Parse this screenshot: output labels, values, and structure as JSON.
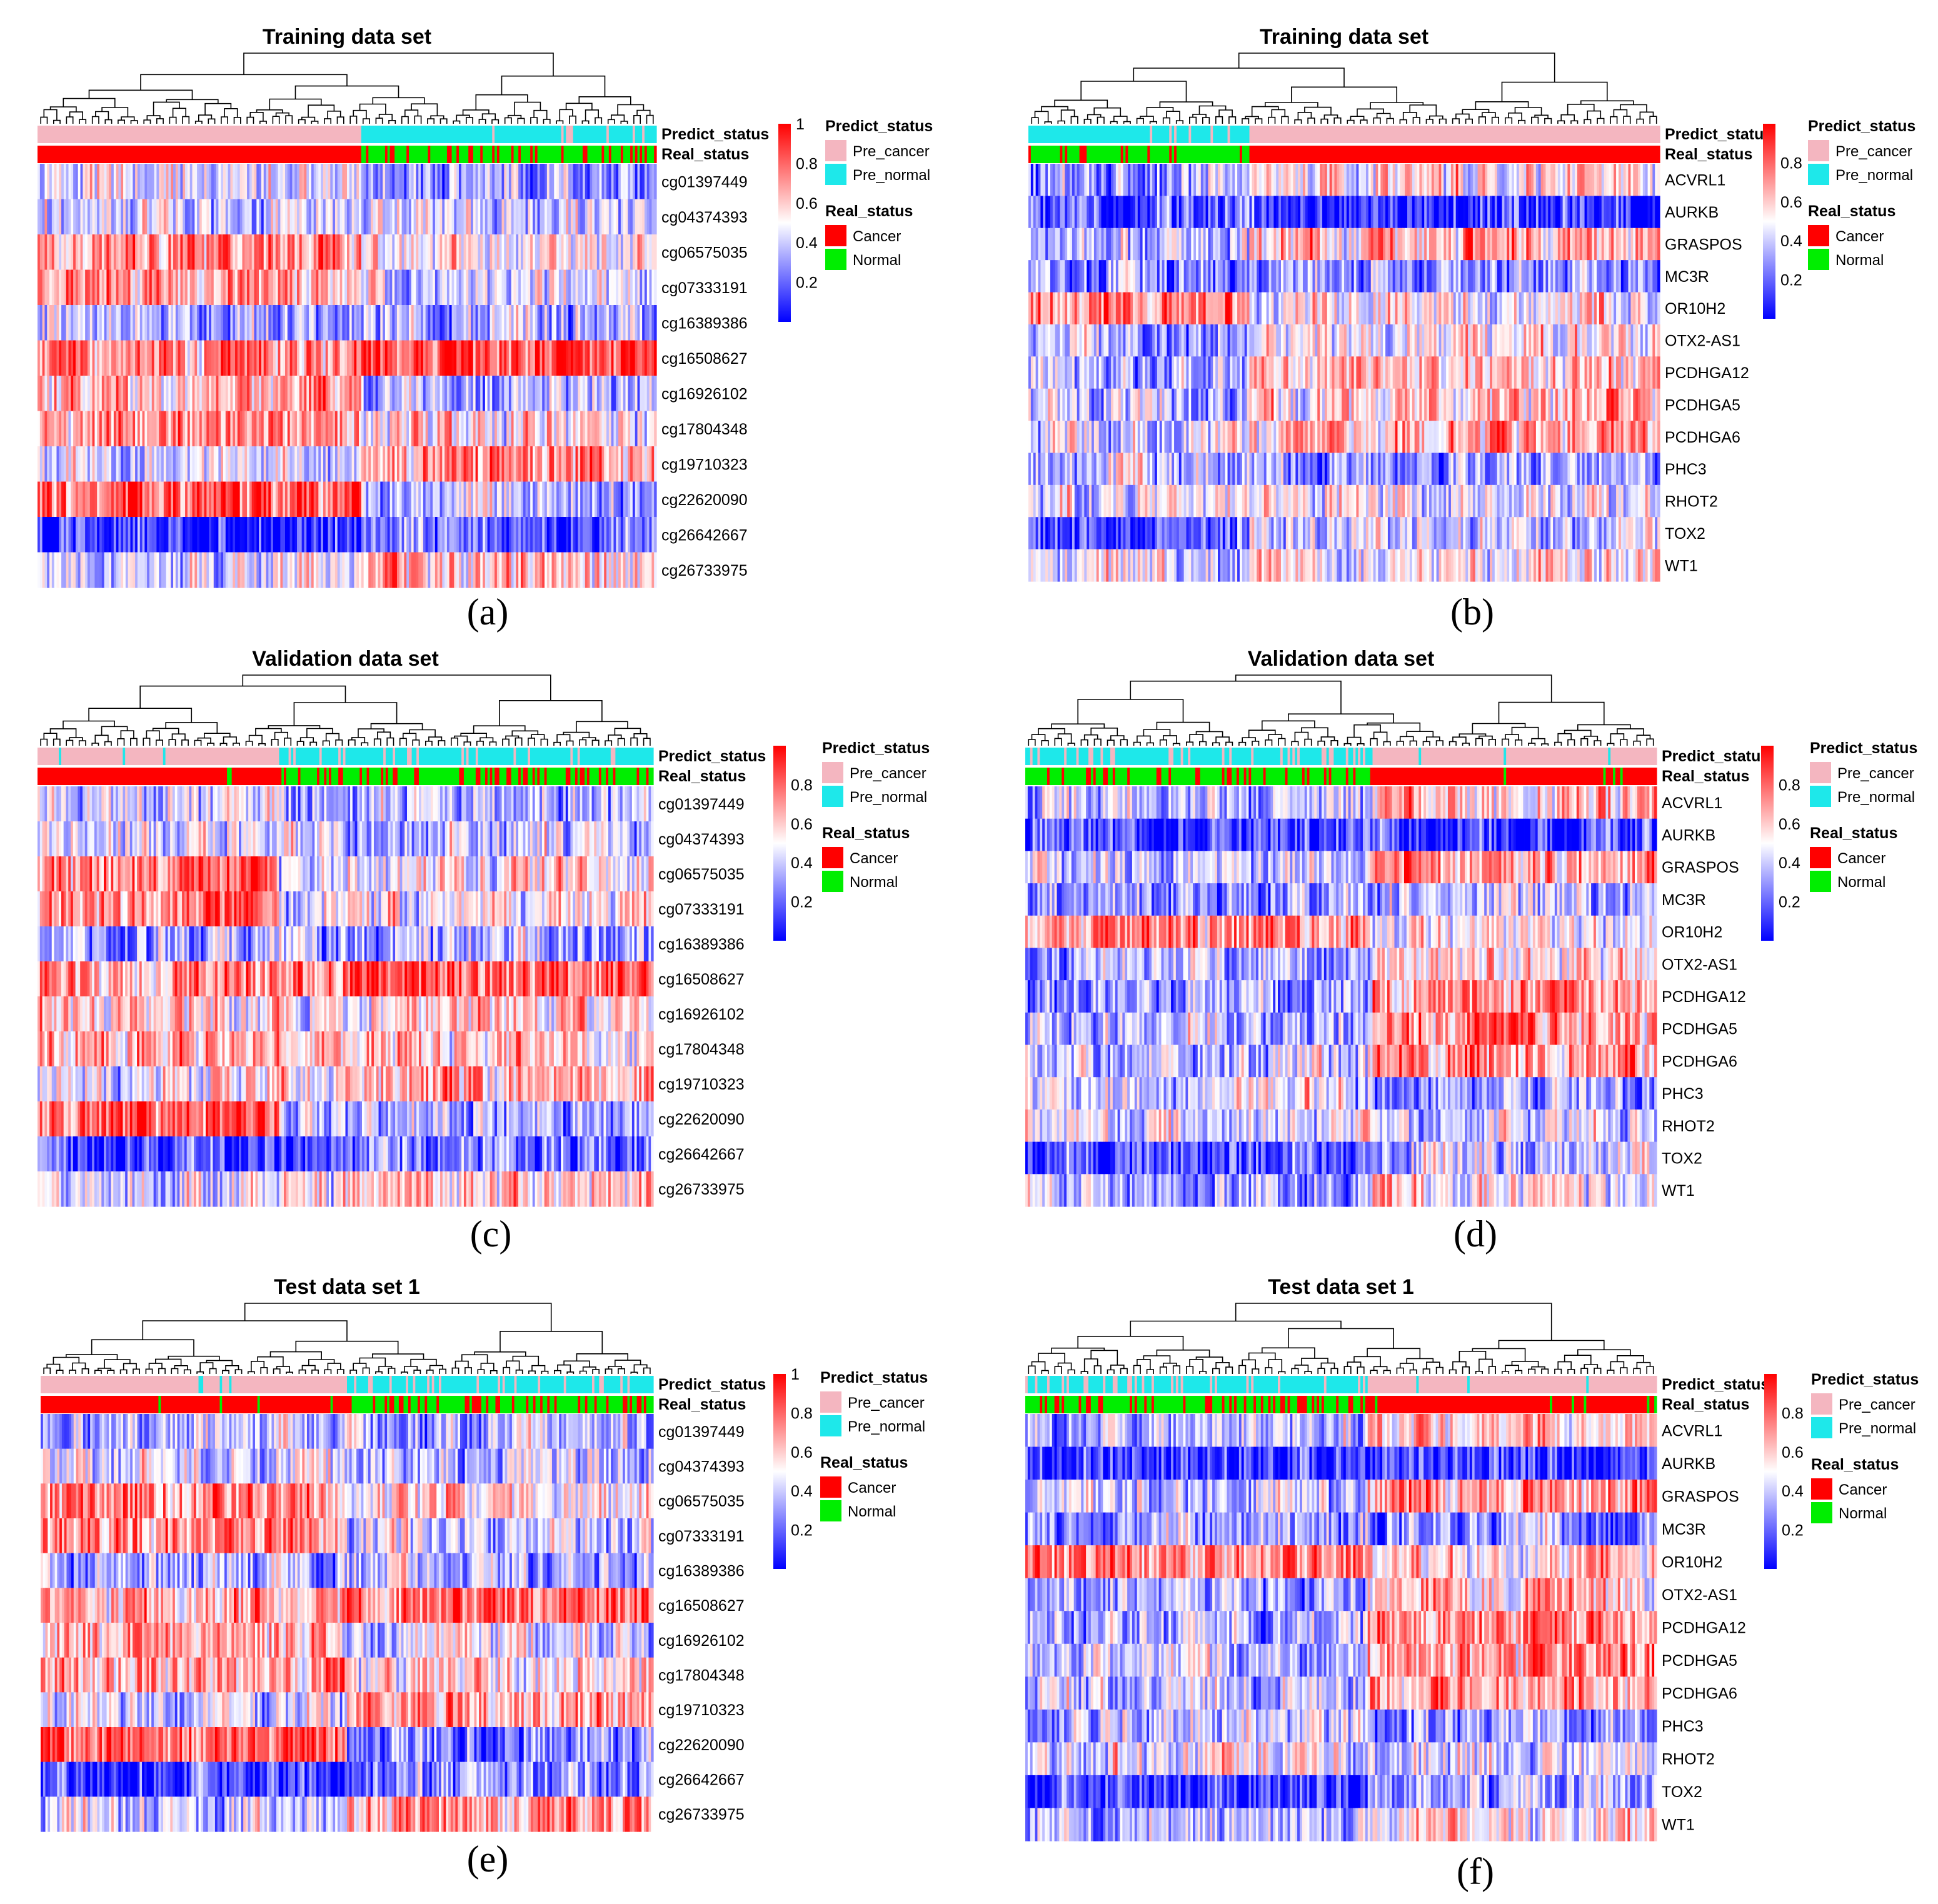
{
  "figure": {
    "annotation_tracks": [
      "Predict_status",
      "Real_status"
    ],
    "colorbar": {
      "high_color": "#ff0000",
      "mid_color": "#ffffff",
      "low_color": "#0000ff",
      "ticks_with_1": [
        "1",
        "0.8",
        "0.6",
        "0.4",
        "0.2"
      ],
      "ticks_without_1": [
        "0.8",
        "0.6",
        "0.4",
        "0.2"
      ]
    },
    "legend": {
      "predict_title": "Predict_status",
      "predict_items": [
        {
          "label": "Pre_cancer",
          "color": "#f4b6c0"
        },
        {
          "label": "Pre_normal",
          "color": "#1ee8ea"
        }
      ],
      "real_title": "Real_status",
      "real_items": [
        {
          "label": "Cancer",
          "color": "#ff0000"
        },
        {
          "label": "Normal",
          "color": "#00ee00"
        }
      ]
    },
    "cg_rows": [
      "cg01397449",
      "cg04374393",
      "cg06575035",
      "cg07333191",
      "cg16389386",
      "cg16508627",
      "cg16926102",
      "cg17804348",
      "cg19710323",
      "cg22620090",
      "cg26642667",
      "cg26733975"
    ],
    "gene_rows": [
      "ACVRL1",
      "AURKB",
      "GRASPOS",
      "MC3R",
      "OR10H2",
      "OTX2-AS1",
      "PCDHGA12",
      "PCDHGA5",
      "PCDHGA6",
      "PHC3",
      "RHOT2",
      "TOX2",
      "WT1"
    ]
  },
  "chart_data": [
    {
      "panel": "(a)",
      "type": "heatmap",
      "title": "Training data set",
      "rows_key": "cg_rows",
      "colorbar_ticks": "with_1",
      "column_clusters": {
        "breaks": [
          0.52
        ],
        "predict": [
          "Pre_cancer",
          "Pre_normal"
        ],
        "real": [
          "Cancer",
          "Normal"
        ],
        "mismatch_rate": [
          0.0,
          0.2
        ]
      },
      "row_levels": [
        [
          0.45,
          0.35
        ],
        [
          0.45,
          0.4
        ],
        [
          0.72,
          0.55
        ],
        [
          0.7,
          0.45
        ],
        [
          0.35,
          0.33
        ],
        [
          0.72,
          0.85
        ],
        [
          0.65,
          0.4
        ],
        [
          0.7,
          0.55
        ],
        [
          0.45,
          0.72
        ],
        [
          0.82,
          0.35
        ],
        [
          0.12,
          0.22
        ],
        [
          0.4,
          0.62
        ]
      ]
    },
    {
      "panel": "(b)",
      "type": "heatmap",
      "title": "Training data set",
      "rows_key": "gene_rows",
      "colorbar_ticks": "without_1",
      "column_clusters": {
        "breaks": [
          0.35
        ],
        "predict": [
          "Pre_normal",
          "Pre_cancer"
        ],
        "real": [
          "Normal",
          "Cancer"
        ],
        "mismatch_rate": [
          0.15,
          0.0
        ]
      },
      "row_levels": [
        [
          0.33,
          0.55
        ],
        [
          0.15,
          0.1
        ],
        [
          0.35,
          0.65
        ],
        [
          0.3,
          0.3
        ],
        [
          0.75,
          0.55
        ],
        [
          0.3,
          0.55
        ],
        [
          0.35,
          0.62
        ],
        [
          0.4,
          0.6
        ],
        [
          0.42,
          0.62
        ],
        [
          0.4,
          0.3
        ],
        [
          0.45,
          0.45
        ],
        [
          0.15,
          0.4
        ],
        [
          0.4,
          0.55
        ]
      ]
    },
    {
      "panel": "(c)",
      "type": "heatmap",
      "title": "Validation data set",
      "rows_key": "cg_rows",
      "colorbar_ticks": "without_1",
      "column_clusters": {
        "breaks": [
          0.39,
          0.5
        ],
        "predict": [
          "Pre_cancer",
          "Pre_normal",
          "Pre_normal"
        ],
        "real": [
          "Cancer",
          "Normal",
          "Normal"
        ],
        "mismatch_rate": [
          0.02,
          0.3,
          0.25
        ]
      },
      "row_levels": [
        [
          0.4,
          0.35,
          0.35
        ],
        [
          0.45,
          0.4,
          0.4
        ],
        [
          0.75,
          0.45,
          0.55
        ],
        [
          0.72,
          0.45,
          0.5
        ],
        [
          0.35,
          0.35,
          0.33
        ],
        [
          0.7,
          0.75,
          0.82
        ],
        [
          0.6,
          0.45,
          0.6
        ],
        [
          0.68,
          0.6,
          0.6
        ],
        [
          0.45,
          0.6,
          0.7
        ],
        [
          0.82,
          0.35,
          0.3
        ],
        [
          0.12,
          0.15,
          0.2
        ],
        [
          0.4,
          0.55,
          0.6
        ]
      ]
    },
    {
      "panel": "(d)",
      "type": "heatmap",
      "title": "Validation data set",
      "rows_key": "gene_rows",
      "colorbar_ticks": "without_1",
      "column_clusters": {
        "breaks": [
          0.55
        ],
        "predict": [
          "Pre_normal",
          "Pre_cancer"
        ],
        "real": [
          "Normal",
          "Cancer"
        ],
        "mismatch_rate": [
          0.25,
          0.05
        ]
      },
      "row_levels": [
        [
          0.35,
          0.6
        ],
        [
          0.15,
          0.1
        ],
        [
          0.4,
          0.68
        ],
        [
          0.3,
          0.35
        ],
        [
          0.72,
          0.5
        ],
        [
          0.3,
          0.55
        ],
        [
          0.32,
          0.7
        ],
        [
          0.38,
          0.68
        ],
        [
          0.38,
          0.7
        ],
        [
          0.42,
          0.3
        ],
        [
          0.45,
          0.45
        ],
        [
          0.12,
          0.4
        ],
        [
          0.35,
          0.55
        ]
      ]
    },
    {
      "panel": "(e)",
      "type": "heatmap",
      "title": "Test data set 1",
      "rows_key": "cg_rows",
      "colorbar_ticks": "with_1",
      "column_clusters": {
        "breaks": [
          0.5
        ],
        "predict": [
          "Pre_cancer",
          "Pre_normal"
        ],
        "real": [
          "Cancer",
          "Normal"
        ],
        "mismatch_rate": [
          0.03,
          0.25
        ]
      },
      "row_levels": [
        [
          0.38,
          0.35
        ],
        [
          0.45,
          0.35
        ],
        [
          0.72,
          0.55
        ],
        [
          0.7,
          0.4
        ],
        [
          0.35,
          0.33
        ],
        [
          0.65,
          0.8
        ],
        [
          0.65,
          0.45
        ],
        [
          0.68,
          0.55
        ],
        [
          0.42,
          0.68
        ],
        [
          0.82,
          0.3
        ],
        [
          0.15,
          0.25
        ],
        [
          0.4,
          0.65
        ]
      ]
    },
    {
      "panel": "(f)",
      "type": "heatmap",
      "title": "Test data set 1",
      "rows_key": "gene_rows",
      "colorbar_ticks": "without_1",
      "column_clusters": {
        "breaks": [
          0.54
        ],
        "predict": [
          "Pre_normal",
          "Pre_cancer"
        ],
        "real": [
          "Normal",
          "Cancer"
        ],
        "mismatch_rate": [
          0.3,
          0.05
        ]
      },
      "row_levels": [
        [
          0.35,
          0.55
        ],
        [
          0.12,
          0.12
        ],
        [
          0.4,
          0.7
        ],
        [
          0.3,
          0.3
        ],
        [
          0.72,
          0.55
        ],
        [
          0.3,
          0.6
        ],
        [
          0.35,
          0.72
        ],
        [
          0.38,
          0.68
        ],
        [
          0.38,
          0.68
        ],
        [
          0.4,
          0.3
        ],
        [
          0.45,
          0.45
        ],
        [
          0.12,
          0.4
        ],
        [
          0.38,
          0.55
        ]
      ]
    }
  ]
}
